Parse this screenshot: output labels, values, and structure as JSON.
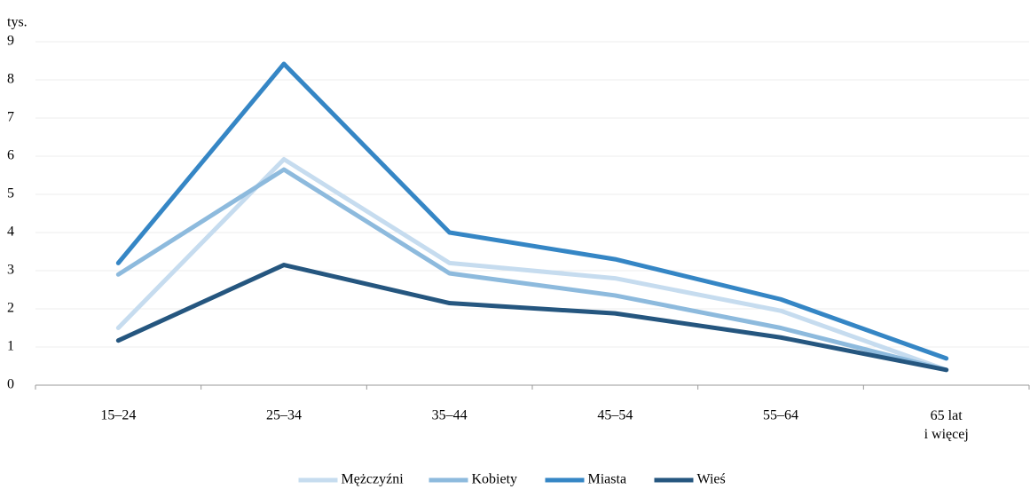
{
  "chart_data": {
    "type": "line",
    "y_unit_label": "tys.",
    "categories": [
      "15–24",
      "25–34",
      "35–44",
      "45–54",
      "55–64",
      "65 lat\ni więcej"
    ],
    "series": [
      {
        "name": "Mężczyźni",
        "color": "#c6dcef",
        "values": [
          1.5,
          5.92,
          3.2,
          2.8,
          1.95,
          0.4
        ]
      },
      {
        "name": "Kobiety",
        "color": "#8dbadd",
        "values": [
          2.9,
          5.65,
          2.93,
          2.35,
          1.5,
          0.4
        ]
      },
      {
        "name": "Miasta",
        "color": "#3586c5",
        "values": [
          3.2,
          8.42,
          4.0,
          3.3,
          2.25,
          0.7
        ]
      },
      {
        "name": "Wieś",
        "color": "#25567f",
        "values": [
          1.17,
          3.15,
          2.15,
          1.88,
          1.25,
          0.4
        ]
      }
    ],
    "ylim": [
      0,
      9
    ],
    "yticks": [
      0,
      1,
      2,
      3,
      4,
      5,
      6,
      7,
      8,
      9
    ],
    "grid": true,
    "legend": "bottom"
  }
}
